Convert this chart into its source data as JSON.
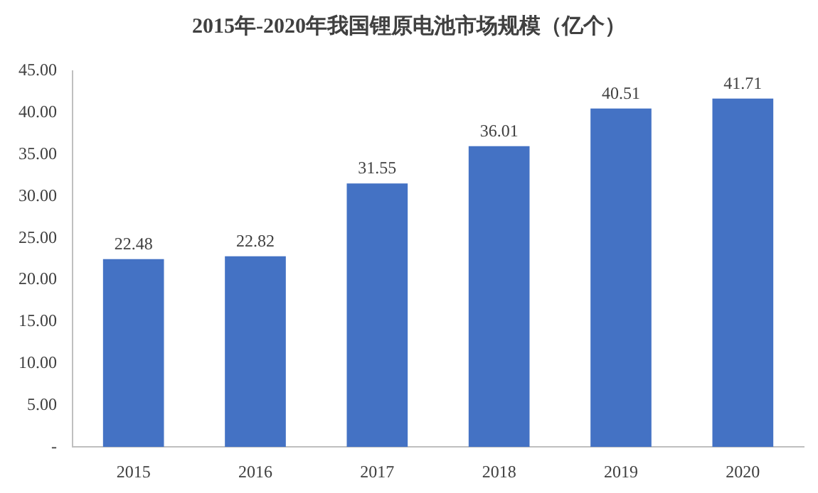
{
  "chart_data": {
    "type": "bar",
    "title": "2015年-2020年我国锂原电池市场规模（亿个）",
    "categories": [
      "2015",
      "2016",
      "2017",
      "2018",
      "2019",
      "2020"
    ],
    "values": [
      22.48,
      22.82,
      31.55,
      36.01,
      40.51,
      41.71
    ],
    "color": "#4472c4",
    "ylim": [
      0,
      45
    ],
    "yticks": [
      {
        "value": 0,
        "label": "-"
      },
      {
        "value": 5,
        "label": "5.00"
      },
      {
        "value": 10,
        "label": "10.00"
      },
      {
        "value": 15,
        "label": "15.00"
      },
      {
        "value": 20,
        "label": "20.00"
      },
      {
        "value": 25,
        "label": "25.00"
      },
      {
        "value": 30,
        "label": "30.00"
      },
      {
        "value": 35,
        "label": "35.00"
      },
      {
        "value": 40,
        "label": "40.00"
      },
      {
        "value": 45,
        "label": "45.00"
      }
    ],
    "grid": false,
    "legend": false,
    "data_labels": true
  }
}
